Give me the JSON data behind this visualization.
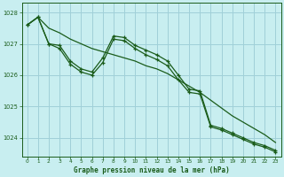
{
  "title": "Graphe pression niveau de la mer (hPa)",
  "bg_color": "#c8eef0",
  "grid_color": "#a0d0d8",
  "line_color": "#1a5c1a",
  "ylim": [
    1023.4,
    1028.3
  ],
  "yticks": [
    1024,
    1025,
    1026,
    1027,
    1028
  ],
  "xlim": [
    -0.5,
    23.5
  ],
  "xticks": [
    0,
    1,
    2,
    3,
    4,
    5,
    6,
    7,
    8,
    9,
    10,
    11,
    12,
    13,
    14,
    15,
    16,
    17,
    18,
    19,
    20,
    21,
    22,
    23
  ],
  "s1": [
    1027.6,
    1027.85,
    1027.5,
    1027.35,
    1027.15,
    1027.0,
    1026.85,
    1026.75,
    1026.65,
    1026.55,
    1026.45,
    1026.3,
    1026.2,
    1026.05,
    1025.85,
    1025.65,
    1025.45,
    1025.2,
    1024.95,
    1024.7,
    1024.5,
    1024.3,
    1024.1,
    1023.85
  ],
  "s2": [
    1027.6,
    1027.85,
    1027.0,
    1026.95,
    1026.45,
    1026.2,
    1026.1,
    1026.55,
    1027.25,
    1027.2,
    1026.95,
    1026.8,
    1026.65,
    1026.45,
    1026.0,
    1025.55,
    1025.5,
    1024.4,
    1024.3,
    1024.15,
    1024.0,
    1023.85,
    1023.75,
    1023.6
  ],
  "s3": [
    1027.6,
    1027.85,
    1027.0,
    1026.85,
    1026.35,
    1026.1,
    1026.0,
    1026.4,
    1027.15,
    1027.1,
    1026.85,
    1026.65,
    1026.5,
    1026.3,
    1025.85,
    1025.45,
    1025.4,
    1024.35,
    1024.25,
    1024.1,
    1023.95,
    1023.8,
    1023.7,
    1023.55
  ]
}
